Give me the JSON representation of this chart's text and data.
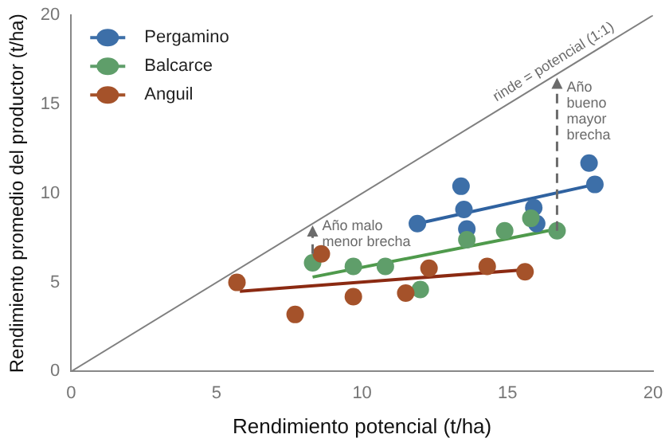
{
  "chart_data": {
    "type": "scatter",
    "xlabel": "Rendimiento potencial (t/ha)",
    "ylabel": "Rendimiento promedio del productor (t/ha)",
    "xlim": [
      0,
      20
    ],
    "ylim": [
      0,
      20
    ],
    "xticks": [
      0,
      5,
      10,
      15,
      20
    ],
    "yticks": [
      0,
      5,
      10,
      15,
      20
    ],
    "grid": false,
    "legend": "top left",
    "series": [
      {
        "type": "line",
        "color": "#7f7f7f",
        "x": [
          0,
          20
        ],
        "values": [
          0,
          20
        ]
      },
      {
        "name": "Pergamino",
        "marker": "circle",
        "color": "#3d6fa8",
        "x": [
          17.8,
          13.4,
          18.0,
          13.5,
          15.9,
          11.9,
          13.6,
          16.0
        ],
        "values": [
          11.7,
          10.4,
          10.5,
          9.1,
          9.2,
          8.3,
          8.0,
          8.3
        ]
      },
      {
        "name": "Balcarce",
        "marker": "circle",
        "color": "#5f9e6a",
        "x": [
          15.8,
          14.9,
          13.6,
          16.7,
          8.3,
          9.7,
          10.8,
          12.0
        ],
        "values": [
          8.6,
          7.9,
          7.4,
          7.9,
          6.1,
          5.9,
          5.9,
          4.6
        ]
      },
      {
        "name": "Anguil",
        "marker": "circle",
        "color": "#a5522a",
        "x": [
          5.7,
          7.7,
          9.7,
          8.6,
          11.5,
          12.3,
          14.3,
          15.6
        ],
        "values": [
          5.0,
          3.2,
          4.2,
          6.6,
          4.4,
          5.8,
          5.9,
          5.6
        ]
      },
      {
        "type": "line",
        "color": "#2f62a0",
        "x": [
          11.9,
          18.0
        ],
        "values": [
          8.3,
          10.5
        ]
      },
      {
        "type": "line",
        "color": "#4f9a4c",
        "x": [
          8.3,
          16.7
        ],
        "values": [
          5.3,
          8.0
        ]
      },
      {
        "type": "line",
        "color": "#8b2a12",
        "x": [
          5.8,
          15.5
        ],
        "values": [
          4.5,
          5.7
        ]
      }
    ],
    "annotations": [
      {
        "text": "rinde = potencial (1:1)",
        "x": 16.8,
        "y": 16.8
      },
      {
        "text": "Año bueno mayor brecha",
        "x": 16.7,
        "y": 16.5
      },
      {
        "text": "Año malo menor brecha",
        "x": 8.3,
        "y": 8.2
      }
    ]
  }
}
